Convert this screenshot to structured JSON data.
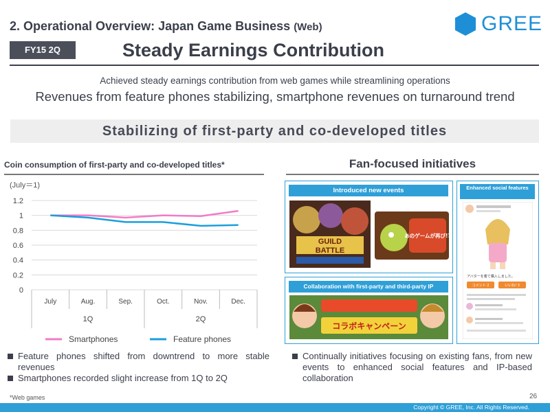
{
  "header": {
    "section_title": "2. Operational Overview: Japan Game Business",
    "section_title_suffix": "(Web)",
    "badge": "FY15 2Q",
    "headline": "Steady Earnings Contribution",
    "logo_text": "GREE"
  },
  "subtitle": {
    "line1": "Achieved steady earnings contribution from web games while streamlining operations",
    "line2": "Revenues from feature phones stabilizing, smartphone revenues on turnaround trend"
  },
  "banner": "Stabilizing of first-party and co-developed titles",
  "left": {
    "title": "Coin consumption of first-party and co-developed titles*",
    "bullets": [
      "Feature phones shifted from downtrend to more stable revenues",
      "Smartphones recorded slight increase from 1Q to 2Q"
    ]
  },
  "right": {
    "title": "Fan-focused initiatives",
    "panel_events": "Introduced new events",
    "panel_social": "Enhanced social features",
    "panel_collab": "Collaboration with first-party and third-party IP",
    "event_tile1_line1": "GUILD",
    "event_tile1_line2": "BATTLE",
    "event_tile2_text": "あのゲームが再び!?",
    "collab_text": "コラボキャンペーン",
    "social_post": "アバターを着て購入しました。",
    "social_btn1": "コメント 2",
    "social_btn2": "いいね! 3",
    "bullets": [
      "Continually initiatives focusing on existing fans, from new events to enhanced social features and IP-based collaboration"
    ]
  },
  "chart_data": {
    "type": "line",
    "note": "(July＝1)",
    "categories": [
      "July",
      "Aug.",
      "Sep.",
      "Oct.",
      "Nov.",
      "Dec."
    ],
    "quarters": [
      "1Q",
      "2Q"
    ],
    "ylim": [
      0,
      1.2
    ],
    "yticks": [
      "0",
      "0.2",
      "0.4",
      "0.6",
      "0.8",
      "1",
      "1.2"
    ],
    "series": [
      {
        "name": "Smartphones",
        "color": "#f27bc6",
        "values": [
          1.0,
          1.0,
          0.97,
          1.0,
          0.99,
          1.06
        ]
      },
      {
        "name": "Feature phones",
        "color": "#1a9fdc",
        "values": [
          1.0,
          0.97,
          0.91,
          0.91,
          0.86,
          0.87
        ]
      }
    ]
  },
  "footer": {
    "footnote": "*Web games",
    "page_number": "26",
    "copyright": "Copyright © GREE, Inc. All Rights Reserved."
  },
  "colors": {
    "accent": "#2f9fd8",
    "dark": "#3a3f4a",
    "banner_bg": "#eeeeef"
  }
}
